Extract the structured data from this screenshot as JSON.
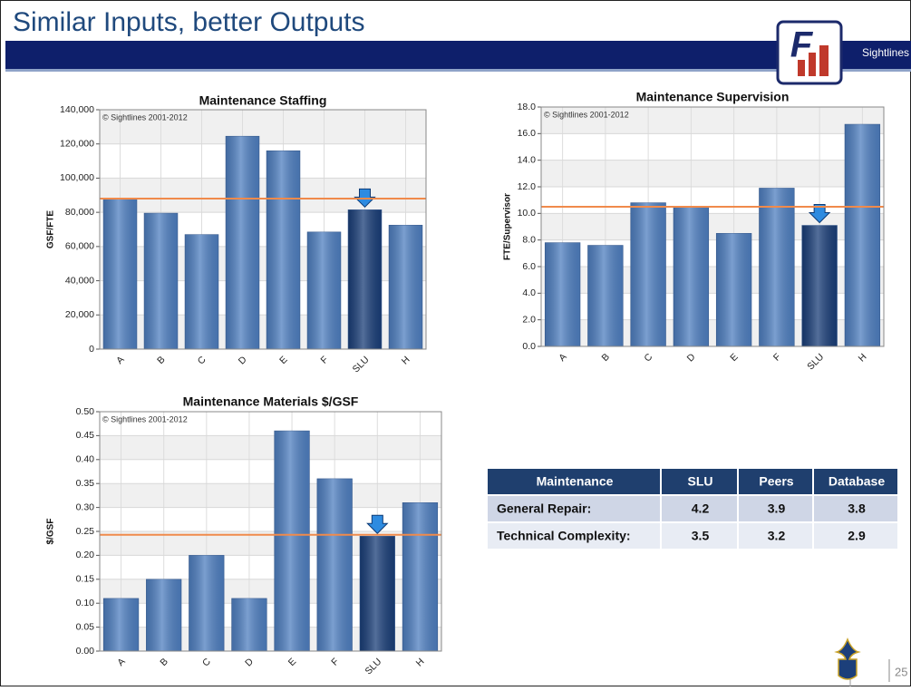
{
  "title": "Similar Inputs, better Outputs",
  "logo": {
    "letter": "F",
    "name": "Sightlines"
  },
  "page_number": "25",
  "chart_data": [
    {
      "type": "bar",
      "title": "Maintenance Staffing",
      "annotation": "© Sightlines 2001-2012",
      "y_label": "GSF/FTE",
      "categories": [
        "A",
        "B",
        "C",
        "D",
        "E",
        "F",
        "SLU",
        "H"
      ],
      "values": [
        88000,
        79500,
        67000,
        124500,
        116000,
        68500,
        81500,
        72500
      ],
      "color": "#4f7fc0",
      "highlight": "SLU",
      "highlight_color": "#1a3e78",
      "reference_line": {
        "value": 88000,
        "color": "#f08a4b"
      },
      "ylim": [
        0,
        140000
      ],
      "yticks": [
        0,
        {
          "value": 20000,
          "label": "20,000"
        },
        {
          "value": 40000,
          "label": "40,000"
        },
        {
          "value": 60000,
          "label": "60,000"
        },
        {
          "value": 80000,
          "label": "80,000"
        },
        {
          "value": 100000,
          "label": "100,000"
        },
        {
          "value": 120000,
          "label": "120,000"
        },
        {
          "value": 140000,
          "label": "140,000"
        }
      ],
      "grid": true
    },
    {
      "type": "bar",
      "title": "Maintenance Supervision",
      "annotation": "© Sightlines 2001-2012",
      "y_label": "FTE/Supervisor",
      "categories": [
        "A",
        "B",
        "C",
        "D",
        "E",
        "F",
        "SLU",
        "H"
      ],
      "values": [
        7.8,
        7.6,
        10.8,
        10.5,
        8.5,
        11.9,
        9.1,
        16.7
      ],
      "color": "#4f7fc0",
      "highlight": "SLU",
      "highlight_color": "#1a3e78",
      "reference_line": {
        "value": 10.5,
        "color": "#f08a4b"
      },
      "ylim": [
        0,
        18
      ],
      "yticks": [
        {
          "value": 0,
          "label": "0.0"
        },
        {
          "value": 2,
          "label": "2.0"
        },
        {
          "value": 4,
          "label": "4.0"
        },
        {
          "value": 6,
          "label": "6.0"
        },
        {
          "value": 8,
          "label": "8.0"
        },
        {
          "value": 10,
          "label": "10.0"
        },
        {
          "value": 12,
          "label": "12.0"
        },
        {
          "value": 14,
          "label": "14.0"
        },
        {
          "value": 16,
          "label": "16.0"
        },
        {
          "value": 18,
          "label": "18.0"
        }
      ],
      "grid": true
    },
    {
      "type": "bar",
      "title": "Maintenance Materials $/GSF",
      "annotation": "© Sightlines 2001-2012",
      "y_label": "$/GSF",
      "categories": [
        "A",
        "B",
        "C",
        "D",
        "E",
        "F",
        "SLU",
        "H"
      ],
      "values": [
        0.11,
        0.15,
        0.2,
        0.11,
        0.46,
        0.36,
        0.24,
        0.31
      ],
      "color": "#4f7fc0",
      "highlight": "SLU",
      "highlight_color": "#1a3e78",
      "reference_line": {
        "value": 0.243,
        "color": "#f08a4b"
      },
      "ylim": [
        0,
        0.5
      ],
      "yticks": [
        {
          "value": 0,
          "label": "0.00"
        },
        {
          "value": 0.05,
          "label": "0.05"
        },
        {
          "value": 0.1,
          "label": "0.10"
        },
        {
          "value": 0.15,
          "label": "0.15"
        },
        {
          "value": 0.2,
          "label": "0.20"
        },
        {
          "value": 0.25,
          "label": "0.25"
        },
        {
          "value": 0.3,
          "label": "0.30"
        },
        {
          "value": 0.35,
          "label": "0.35"
        },
        {
          "value": 0.4,
          "label": "0.40"
        },
        {
          "value": 0.45,
          "label": "0.45"
        },
        {
          "value": 0.5,
          "label": "0.50"
        }
      ],
      "grid": true
    }
  ],
  "table": {
    "header": [
      "Maintenance",
      "SLU",
      "Peers",
      "Database"
    ],
    "rows": [
      [
        "General Repair:",
        "4.2",
        "3.9",
        "3.8"
      ],
      [
        "Technical Complexity:",
        "3.5",
        "3.2",
        "2.9"
      ]
    ]
  }
}
